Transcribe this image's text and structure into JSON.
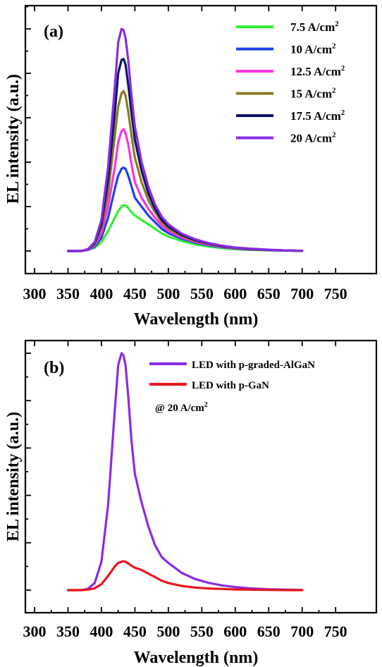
{
  "chart_data": [
    {
      "type": "line",
      "panel_label": "(a)",
      "xlabel": "Wavelength (nm)",
      "ylabel": "EL intensity (a.u.)",
      "xlim": [
        300,
        750
      ],
      "xticks": [
        300,
        350,
        400,
        450,
        500,
        550,
        600,
        650,
        700,
        750
      ],
      "ylim": [
        -0.03,
        1.05
      ],
      "y_tick_labels_shown": false,
      "grid": false,
      "legend_position": "top-right",
      "x": [
        350,
        370,
        380,
        390,
        400,
        410,
        420,
        425,
        430,
        433,
        436,
        440,
        445,
        450,
        460,
        470,
        480,
        490,
        500,
        520,
        540,
        560,
        580,
        600,
        620,
        650,
        680,
        700
      ],
      "series": [
        {
          "name": "7.5 A/cm2",
          "name_main": "7.5 A/cm",
          "name_sup": "2",
          "color": "#33ee33",
          "values": [
            0,
            0,
            0.005,
            0.015,
            0.04,
            0.09,
            0.15,
            0.18,
            0.2,
            0.206,
            0.205,
            0.195,
            0.175,
            0.16,
            0.14,
            0.12,
            0.1,
            0.08,
            0.065,
            0.045,
            0.03,
            0.02,
            0.013,
            0.008,
            0.005,
            0.003,
            0.001,
            0
          ]
        },
        {
          "name": "10 A/cm2",
          "name_main": "10 A/cm",
          "name_sup": "2",
          "color": "#1f3ff0",
          "values": [
            0,
            0,
            0.005,
            0.02,
            0.06,
            0.15,
            0.28,
            0.34,
            0.37,
            0.376,
            0.37,
            0.34,
            0.29,
            0.24,
            0.2,
            0.16,
            0.13,
            0.1,
            0.08,
            0.055,
            0.038,
            0.026,
            0.017,
            0.011,
            0.007,
            0.004,
            0.002,
            0.001
          ]
        },
        {
          "name": "12.5 A/cm2",
          "name_main": "12.5 A/cm",
          "name_sup": "2",
          "color": "#ff33dd",
          "values": [
            0,
            0,
            0.006,
            0.025,
            0.08,
            0.2,
            0.38,
            0.49,
            0.54,
            0.548,
            0.53,
            0.48,
            0.39,
            0.31,
            0.24,
            0.19,
            0.15,
            0.115,
            0.09,
            0.06,
            0.042,
            0.029,
            0.019,
            0.012,
            0.008,
            0.004,
            0.002,
            0.001
          ]
        },
        {
          "name": "15 A/cm2",
          "name_main": "15 A/cm",
          "name_sup": "2",
          "color": "#8a7a24",
          "values": [
            0,
            0,
            0.007,
            0.03,
            0.1,
            0.26,
            0.52,
            0.65,
            0.71,
            0.72,
            0.7,
            0.63,
            0.52,
            0.42,
            0.31,
            0.23,
            0.175,
            0.13,
            0.1,
            0.067,
            0.046,
            0.032,
            0.021,
            0.014,
            0.009,
            0.005,
            0.002,
            0.001
          ]
        },
        {
          "name": "17.5 A/cm2",
          "name_main": "17.5 A/cm",
          "name_sup": "2",
          "color": "#0c1566",
          "values": [
            0,
            0,
            0.008,
            0.035,
            0.12,
            0.32,
            0.62,
            0.8,
            0.86,
            0.865,
            0.84,
            0.75,
            0.62,
            0.5,
            0.36,
            0.26,
            0.19,
            0.14,
            0.11,
            0.072,
            0.049,
            0.034,
            0.022,
            0.015,
            0.01,
            0.005,
            0.002,
            0.001
          ]
        },
        {
          "name": "20 A/cm2",
          "name_main": "20 A/cm",
          "name_sup": "2",
          "color": "#8a2be2",
          "values": [
            0,
            0,
            0.009,
            0.04,
            0.14,
            0.38,
            0.74,
            0.94,
            1.0,
            0.995,
            0.96,
            0.86,
            0.7,
            0.56,
            0.4,
            0.29,
            0.21,
            0.155,
            0.12,
            0.078,
            0.053,
            0.036,
            0.024,
            0.016,
            0.011,
            0.006,
            0.002,
            0.001
          ]
        }
      ]
    },
    {
      "type": "line",
      "panel_label": "(b)",
      "xlabel": "Wavelength (nm)",
      "ylabel": "EL intensity (a.u.)",
      "xlim": [
        300,
        750
      ],
      "xticks": [
        300,
        350,
        400,
        450,
        500,
        550,
        600,
        650,
        700,
        750
      ],
      "ylim": [
        -0.03,
        1.05
      ],
      "y_tick_labels_shown": false,
      "grid": false,
      "legend_position": "top-right",
      "annotation_main": "@ 20 A/cm",
      "annotation_sup": "2",
      "x": [
        350,
        370,
        380,
        390,
        400,
        410,
        420,
        425,
        430,
        433,
        436,
        440,
        445,
        450,
        460,
        470,
        480,
        490,
        500,
        520,
        540,
        560,
        580,
        600,
        620,
        650,
        680,
        700
      ],
      "series": [
        {
          "name": "LED with p-graded-AlGaN",
          "color": "#8a2be2",
          "values": [
            0,
            0,
            0.006,
            0.03,
            0.12,
            0.36,
            0.76,
            0.95,
            1.0,
            0.99,
            0.95,
            0.82,
            0.63,
            0.49,
            0.37,
            0.27,
            0.19,
            0.14,
            0.115,
            0.073,
            0.047,
            0.031,
            0.02,
            0.013,
            0.008,
            0.004,
            0.002,
            0.001
          ]
        },
        {
          "name": "LED with p-GaN",
          "color": "#e8161c",
          "values": [
            0,
            0,
            0.002,
            0.008,
            0.025,
            0.06,
            0.1,
            0.115,
            0.12,
            0.122,
            0.12,
            0.113,
            0.103,
            0.095,
            0.085,
            0.07,
            0.055,
            0.04,
            0.03,
            0.018,
            0.011,
            0.007,
            0.005,
            0.003,
            0.002,
            0.001,
            0,
            0
          ]
        }
      ]
    }
  ]
}
